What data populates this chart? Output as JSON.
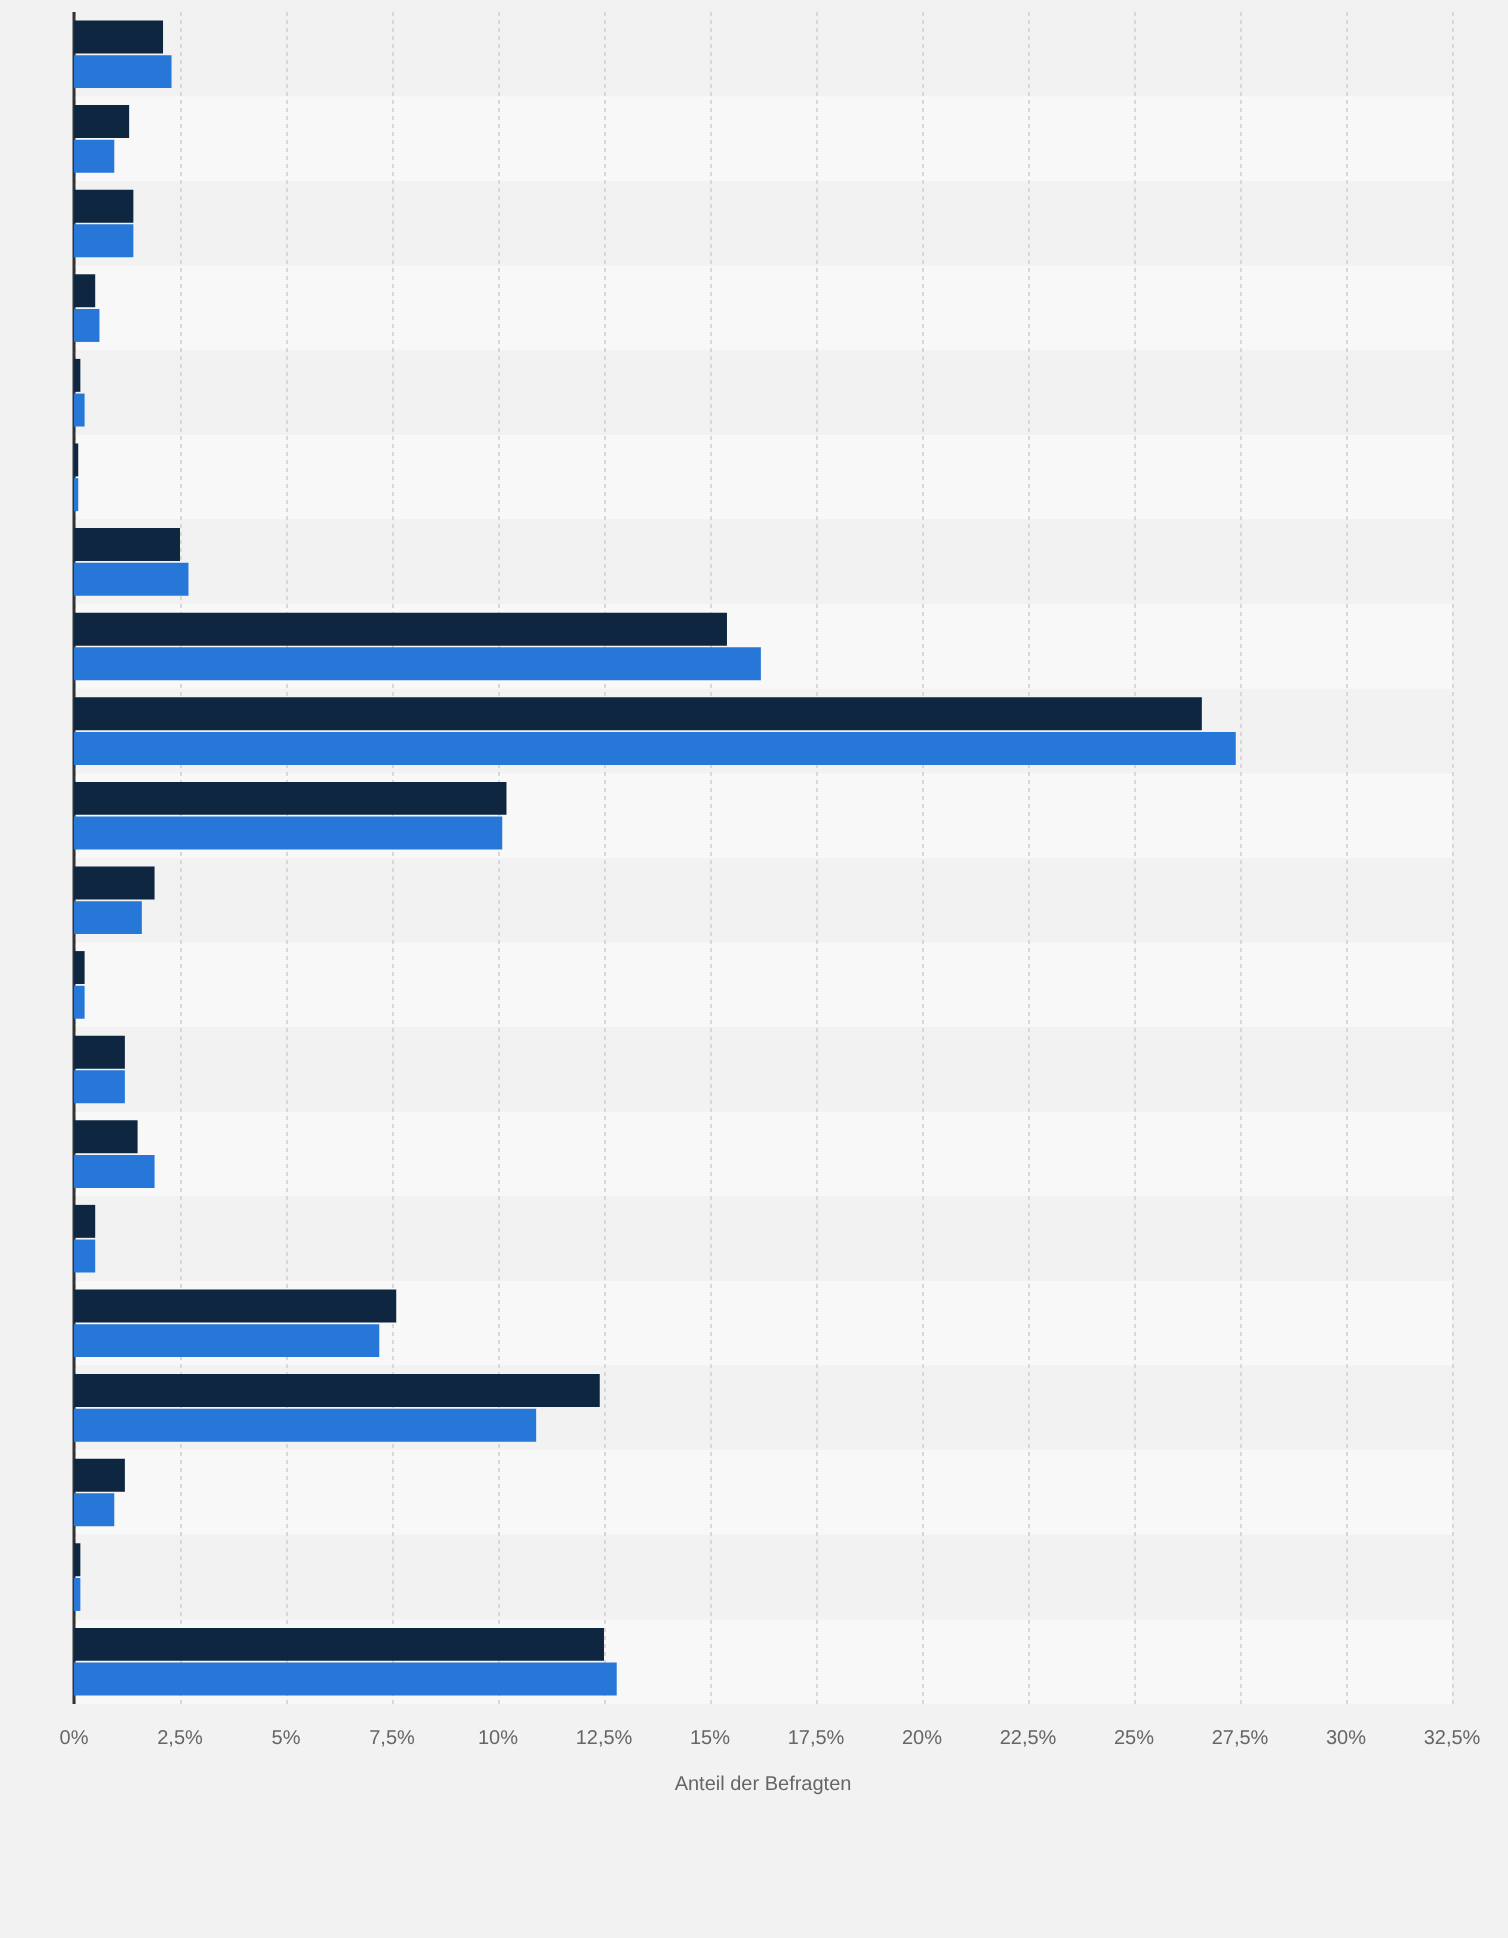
{
  "chart_data": {
    "type": "bar",
    "orientation": "horizontal",
    "xlabel": "Anteil der Befragten",
    "categories": [
      null,
      null,
      null,
      null,
      null,
      null,
      null,
      null,
      null,
      null,
      null,
      null,
      null,
      null,
      null,
      null,
      null,
      null,
      null,
      null
    ],
    "series": [
      {
        "color": "#0f2640",
        "values": [
          2.1,
          1.3,
          1.4,
          0.5,
          0.15,
          0.1,
          2.5,
          15.4,
          26.6,
          10.2,
          1.9,
          0.25,
          1.2,
          1.5,
          0.5,
          7.6,
          12.4,
          1.2,
          0.15,
          12.5
        ]
      },
      {
        "color": "#2777d8",
        "values": [
          2.3,
          0.95,
          1.4,
          0.6,
          0.25,
          0.1,
          2.7,
          16.2,
          27.4,
          10.1,
          1.6,
          0.25,
          1.2,
          1.9,
          0.5,
          7.2,
          10.9,
          0.95,
          0.15,
          12.8
        ]
      }
    ],
    "xlim": [
      0,
      32.5
    ],
    "xticks": [
      {
        "value": 0,
        "label": "0%"
      },
      {
        "value": 2.5,
        "label": "2,5%"
      },
      {
        "value": 5,
        "label": "5%"
      },
      {
        "value": 7.5,
        "label": "7,5%"
      },
      {
        "value": 10,
        "label": "10%"
      },
      {
        "value": 12.5,
        "label": "12,5%"
      },
      {
        "value": 15,
        "label": "15%"
      },
      {
        "value": 17.5,
        "label": "17,5%"
      },
      {
        "value": 20,
        "label": "20%"
      },
      {
        "value": 22.5,
        "label": "22,5%"
      },
      {
        "value": 25,
        "label": "25%"
      },
      {
        "value": 27.5,
        "label": "27,5%"
      },
      {
        "value": 30,
        "label": "30%"
      },
      {
        "value": 32.5,
        "label": "32,5%"
      }
    ],
    "grid": "x"
  }
}
